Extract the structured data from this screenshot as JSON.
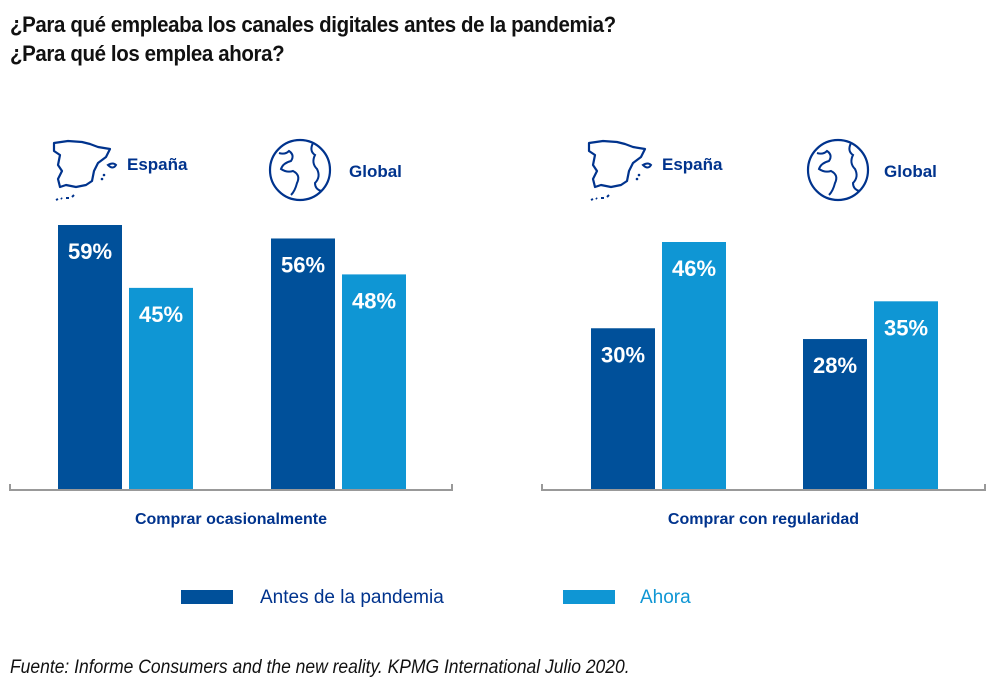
{
  "title_lines": [
    "¿Para qué empleaba los canales digitales antes de la pandemia?",
    "¿Para qué los emplea ahora?"
  ],
  "colors": {
    "antes": "#00509a",
    "ahora": "#0f96d4",
    "text_dark_blue": "#00338d",
    "axis": "#999999"
  },
  "icons": {
    "spain": "spain-map-icon",
    "global": "globe-icon"
  },
  "chart_data": [
    {
      "type": "bar",
      "title": "Comprar ocasionalmente",
      "categories": [
        "España",
        "Global"
      ],
      "series": [
        {
          "name": "Antes de la pandemia",
          "values": [
            59,
            56
          ]
        },
        {
          "name": "Ahora",
          "values": [
            45,
            48
          ]
        }
      ],
      "value_labels": [
        [
          "59%",
          "56%"
        ],
        [
          "45%",
          "48%"
        ]
      ],
      "xlabel": "Comprar ocasionalmente",
      "ylabel": "",
      "ylim": [
        0,
        59
      ],
      "grid": false,
      "legend": "bottom"
    },
    {
      "type": "bar",
      "title": "Comprar con regularidad",
      "categories": [
        "España",
        "Global"
      ],
      "series": [
        {
          "name": "Antes de la pandemia",
          "values": [
            30,
            28
          ]
        },
        {
          "name": "Ahora",
          "values": [
            46,
            35
          ]
        }
      ],
      "value_labels": [
        [
          "30%",
          "28%"
        ],
        [
          "46%",
          "35%"
        ]
      ],
      "xlabel": "Comprar con regularidad",
      "ylabel": "",
      "ylim": [
        0,
        46
      ],
      "grid": false,
      "legend": "bottom"
    }
  ],
  "legend": [
    {
      "label": "Antes de la pandemia"
    },
    {
      "label": "Ahora"
    }
  ],
  "source": "Fuente: Informe Consumers and the new reality. KPMG International Julio 2020."
}
